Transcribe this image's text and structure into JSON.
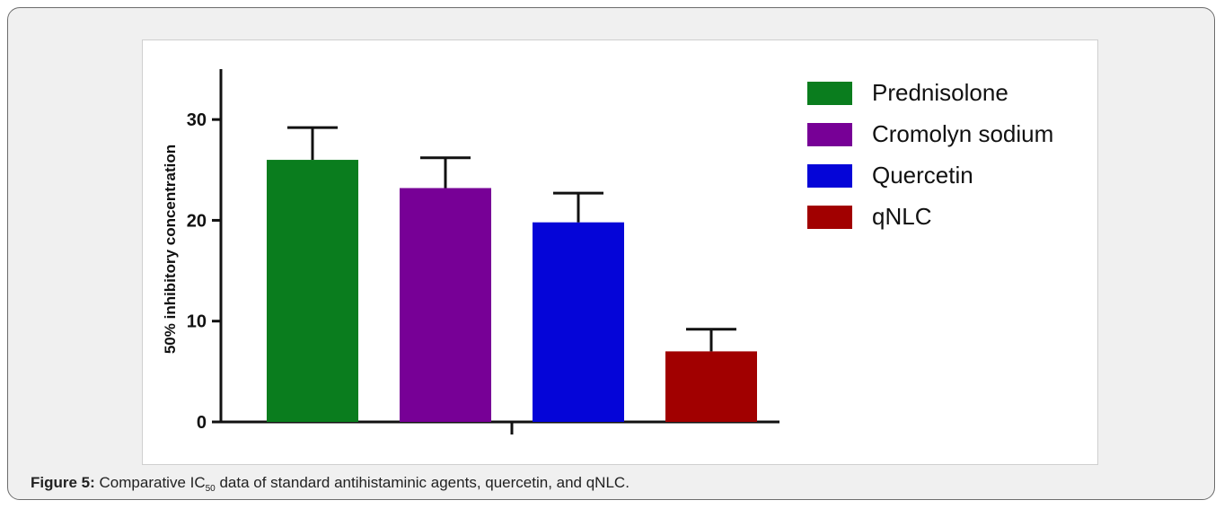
{
  "chart_data": {
    "type": "bar",
    "categories": [
      "Prednisolone",
      "Cromolyn sodium",
      "Quercetin",
      "qNLC"
    ],
    "values": [
      26.0,
      23.2,
      19.8,
      7.0
    ],
    "errors": [
      3.2,
      3.0,
      2.9,
      2.2
    ],
    "colors": [
      "#0a7d1e",
      "#770096",
      "#0505d8",
      "#a10000"
    ],
    "ylabel": "50% inhibitory concentration",
    "ylim": [
      0,
      35
    ],
    "yticks": [
      0,
      10,
      20,
      30
    ],
    "legend_position": "top-right",
    "grid": false
  },
  "caption": {
    "label": "Figure 5:",
    "text_before": " Comparative IC",
    "subscript": "50",
    "text_after": " data of standard antihistaminic agents, quercetin, and qNLC."
  }
}
